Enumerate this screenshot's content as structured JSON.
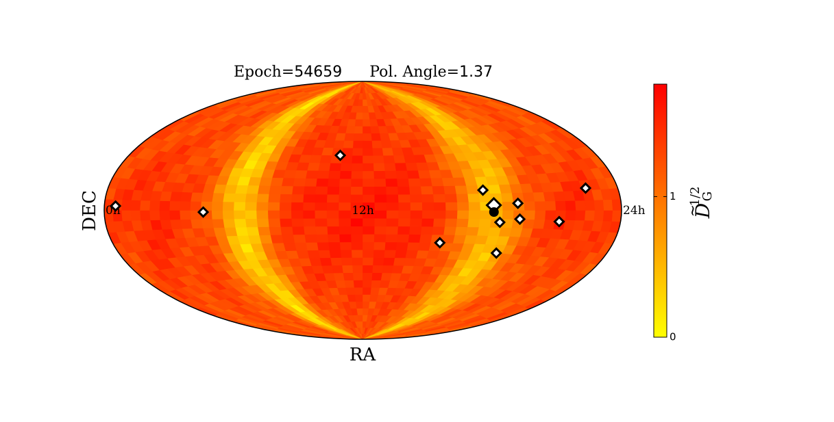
{
  "chart_data": {
    "type": "heatmap",
    "projection": "hammer-aitoff",
    "title": {
      "epoch_label": "Epoch",
      "epoch_value": "54659",
      "angle_label": "Pol. Angle",
      "angle_value": "1.37",
      "equals": "="
    },
    "xlabel": "RA",
    "ylabel": "DEC",
    "ra_tick_labels": [
      "24h",
      "12h",
      "0h"
    ],
    "ra_tick_values_hours": [
      24,
      12,
      0
    ],
    "ra_direction": "decreasing-left-to-right",
    "colorbar": {
      "label_base": "D",
      "label_sub": "G",
      "label_sup": "1/2",
      "ticks": [
        "0",
        "1"
      ],
      "tick_values": [
        0,
        1
      ],
      "range": [
        0,
        1.8
      ],
      "colormap": [
        "#ffff00",
        "#ffbf00",
        "#ff8000",
        "#ff4000",
        "#ff0000"
      ]
    },
    "grid": false,
    "pulsars": [
      {
        "ra_h": 22.2,
        "dec_deg": 11
      },
      {
        "ra_h": 20.7,
        "dec_deg": -6
      },
      {
        "ra_h": 18.7,
        "dec_deg": 4
      },
      {
        "ra_h": 18.8,
        "dec_deg": -5
      },
      {
        "ra_h": 17.2,
        "dec_deg": 12
      },
      {
        "ra_h": 17.9,
        "dec_deg": -7
      },
      {
        "ra_h": 18.2,
        "dec_deg": -25
      },
      {
        "ra_h": 15.4,
        "dec_deg": -20
      },
      {
        "ra_h": 10.9,
        "dec_deg": 35
      },
      {
        "ra_h": 5.1,
        "dec_deg": -1
      },
      {
        "ra_h": 0.65,
        "dec_deg": 2
      }
    ],
    "source": {
      "ra_h": 17.6,
      "dec_deg": 3
    },
    "source_marker_large_diamond": true,
    "injected_source": {
      "ra_h": 17.6,
      "dec_deg": -1
    },
    "sky_model": {
      "components": [
        {
          "ra_h": 12.0,
          "dec_deg": 0,
          "value": 1.6,
          "width_ra_h": 4.0,
          "width_dec_deg": 70
        },
        {
          "ra_h": 21.5,
          "dec_deg": 0,
          "value": 1.5,
          "width_ra_h": 1.8,
          "width_dec_deg": 25
        },
        {
          "ra_h": 2.5,
          "dec_deg": -5,
          "value": 1.5,
          "width_ra_h": 2.0,
          "width_dec_deg": 40
        }
      ],
      "background_value": 1.3,
      "minimum_bands": [
        {
          "ra_h": 17.5,
          "value": 0.5,
          "width_ra_h": 1.4
        },
        {
          "ra_h": 6.8,
          "value": 0.35,
          "width_ra_h": 1.1
        }
      ]
    }
  }
}
